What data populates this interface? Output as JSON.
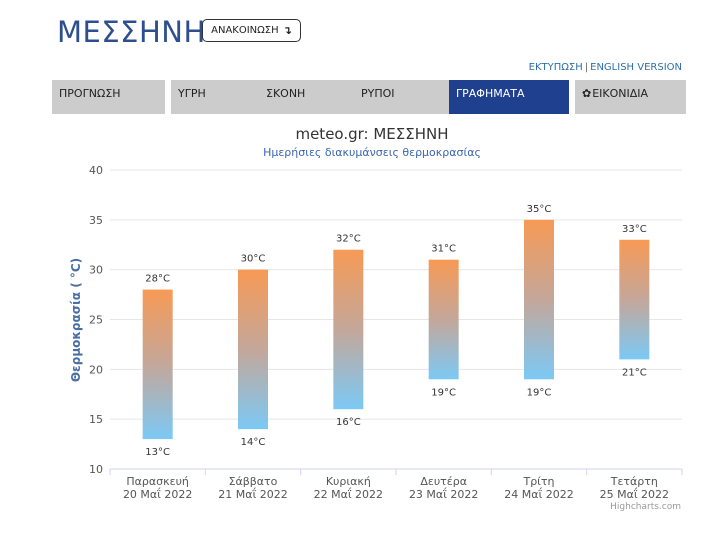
{
  "page": {
    "city_title": "ΜΕΣΣΗΝΗ",
    "announce_label": "ΑΝΑΚΟΙΝΩΣΗ",
    "links": {
      "print": "ΕΚΤΥΠΩΣΗ",
      "separator": "|",
      "english": "ENGLISH VERSION"
    },
    "tabs": [
      {
        "label": "ΠΡΟΓΝΩΣΗ",
        "active": false
      },
      {
        "label": "ΥΓΡΗ",
        "active": false
      },
      {
        "label": "ΣΚΟΝΗ",
        "active": false
      },
      {
        "label": "ΡΥΠΟΙ",
        "active": false
      },
      {
        "label": "ΓΡΑΦΗΜΑΤΑ",
        "active": true
      },
      {
        "label": "ΕΙΚΟΝΙΔΙΑ",
        "active": false,
        "icon": "gear-icon"
      }
    ],
    "credits": "Highcharts.com"
  },
  "colors": {
    "accent": "#1f3f8f",
    "title_blue": "#2e4f8f",
    "bar_top": "#f79a55",
    "bar_bottom": "#7cc9f5"
  },
  "chart_data": {
    "type": "columnrange",
    "title": "meteo.gr: ΜΕΣΣΗΝΗ",
    "subtitle": "Ημερήσιες διακυμάνσεις θερμοκρασίας",
    "ylabel": "Θερμοκρασία ( °C)",
    "ylim": [
      10,
      40
    ],
    "yticks": [
      10,
      15,
      20,
      25,
      30,
      35,
      40
    ],
    "grid": true,
    "unit": "°C",
    "categories": [
      [
        "Παρασκευή",
        "20 Μαΐ 2022"
      ],
      [
        "Σάββατο",
        "21 Μαΐ 2022"
      ],
      [
        "Κυριακή",
        "22 Μαΐ 2022"
      ],
      [
        "Δευτέρα",
        "23 Μαΐ 2022"
      ],
      [
        "Τρίτη",
        "24 Μαΐ 2022"
      ],
      [
        "Τετάρτη",
        "25 Μαΐ 2022"
      ]
    ],
    "low": [
      13,
      14,
      16,
      19,
      19,
      21
    ],
    "high": [
      28,
      30,
      32,
      31,
      35,
      33
    ]
  }
}
